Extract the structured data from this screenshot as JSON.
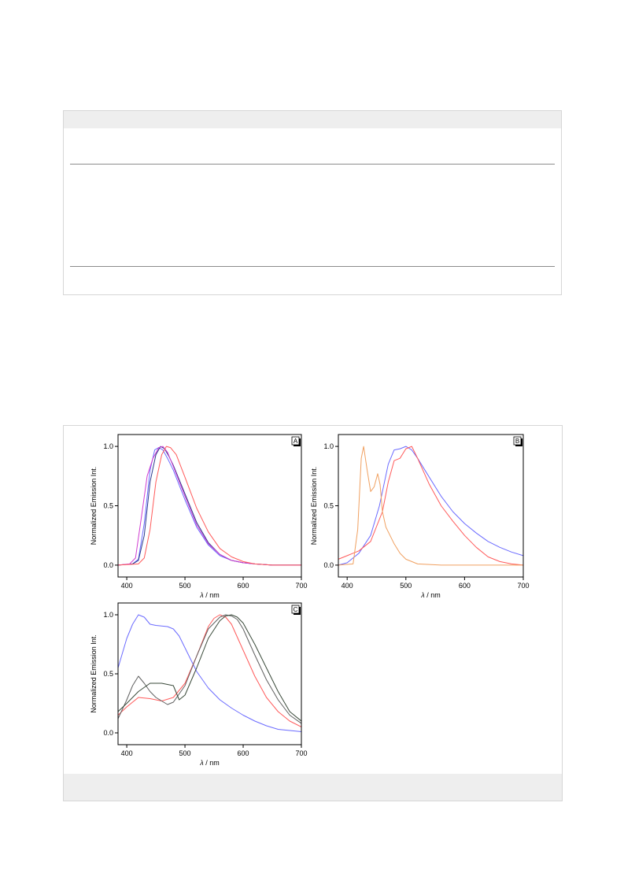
{
  "colors": {
    "blue": "#6b6bff",
    "red": "#ff5a5a",
    "magenta": "#d03cd0",
    "navy": "#2b3a8c",
    "orange": "#f0a060",
    "gray": "#606060",
    "darkgray": "#3a4a3a"
  },
  "chart_data": [
    {
      "panel": "A",
      "type": "line",
      "xlabel_var": "λ",
      "xlabel_unit": " / nm",
      "ylabel": "Normalized Emission Int.",
      "xlim": [
        385,
        700
      ],
      "ylim": [
        -0.1,
        1.1
      ],
      "xticks": [
        400,
        500,
        600,
        700
      ],
      "yticks": [
        0.0,
        0.5,
        1.0
      ],
      "series": [
        {
          "color": "blue",
          "x": [
            385,
            410,
            420,
            430,
            440,
            448,
            455,
            462,
            470,
            480,
            500,
            520,
            540,
            560,
            580,
            600,
            620,
            650,
            700
          ],
          "y": [
            0,
            0.01,
            0.05,
            0.35,
            0.8,
            0.97,
            0.99,
            0.97,
            0.9,
            0.8,
            0.55,
            0.32,
            0.17,
            0.08,
            0.04,
            0.02,
            0.01,
            0,
            0
          ]
        },
        {
          "color": "navy",
          "x": [
            385,
            410,
            420,
            430,
            440,
            450,
            458,
            465,
            472,
            480,
            500,
            520,
            540,
            560,
            580,
            600,
            620,
            650,
            700
          ],
          "y": [
            0,
            0.01,
            0.04,
            0.25,
            0.7,
            0.93,
            1.0,
            0.98,
            0.92,
            0.84,
            0.6,
            0.36,
            0.19,
            0.09,
            0.04,
            0.02,
            0.01,
            0,
            0
          ]
        },
        {
          "color": "magenta",
          "x": [
            385,
            405,
            415,
            425,
            435,
            445,
            455,
            462,
            470,
            480,
            500,
            520,
            540,
            560,
            580,
            600,
            620,
            650,
            700
          ],
          "y": [
            0,
            0.01,
            0.06,
            0.4,
            0.75,
            0.9,
            0.99,
            1.0,
            0.95,
            0.83,
            0.58,
            0.34,
            0.18,
            0.09,
            0.04,
            0.02,
            0.01,
            0,
            0
          ]
        },
        {
          "color": "red",
          "x": [
            385,
            420,
            430,
            440,
            450,
            460,
            468,
            475,
            485,
            500,
            520,
            540,
            560,
            580,
            600,
            620,
            650,
            700
          ],
          "y": [
            0,
            0.01,
            0.06,
            0.3,
            0.7,
            0.93,
            1.0,
            0.99,
            0.93,
            0.74,
            0.48,
            0.28,
            0.14,
            0.07,
            0.03,
            0.01,
            0,
            0
          ]
        }
      ]
    },
    {
      "panel": "B",
      "type": "line",
      "xlabel_var": "λ",
      "xlabel_unit": " / nm",
      "ylabel": "Normalized Emission Int.",
      "xlim": [
        385,
        700
      ],
      "ylim": [
        -0.1,
        1.1
      ],
      "xticks": [
        400,
        500,
        600,
        700
      ],
      "yticks": [
        0.0,
        0.5,
        1.0
      ],
      "series": [
        {
          "color": "blue",
          "x": [
            385,
            400,
            420,
            440,
            455,
            470,
            480,
            490,
            500,
            510,
            520,
            540,
            560,
            580,
            600,
            620,
            640,
            660,
            680,
            700
          ],
          "y": [
            0,
            0.02,
            0.1,
            0.25,
            0.5,
            0.85,
            0.97,
            0.98,
            1.0,
            0.97,
            0.9,
            0.74,
            0.58,
            0.45,
            0.35,
            0.27,
            0.2,
            0.15,
            0.11,
            0.08
          ]
        },
        {
          "color": "red",
          "x": [
            385,
            400,
            410,
            420,
            440,
            460,
            470,
            480,
            490,
            500,
            510,
            520,
            540,
            560,
            580,
            600,
            620,
            640,
            660,
            680,
            700
          ],
          "y": [
            0.05,
            0.08,
            0.1,
            0.12,
            0.2,
            0.45,
            0.7,
            0.88,
            0.9,
            0.98,
            1.0,
            0.9,
            0.68,
            0.5,
            0.37,
            0.25,
            0.15,
            0.07,
            0.03,
            0.01,
            0
          ]
        },
        {
          "color": "orange",
          "x": [
            385,
            410,
            418,
            424,
            428,
            434,
            440,
            446,
            452,
            456,
            460,
            466,
            472,
            480,
            490,
            500,
            520,
            560,
            600,
            700
          ],
          "y": [
            0,
            0.01,
            0.3,
            0.9,
            1.0,
            0.8,
            0.62,
            0.66,
            0.77,
            0.68,
            0.45,
            0.32,
            0.26,
            0.18,
            0.1,
            0.05,
            0.01,
            0,
            0,
            0
          ]
        }
      ]
    },
    {
      "panel": "C",
      "type": "line",
      "xlabel_var": "λ",
      "xlabel_unit": " / nm",
      "ylabel": "Normalized Emission Int.",
      "xlim": [
        385,
        700
      ],
      "ylim": [
        -0.1,
        1.1
      ],
      "xticks": [
        400,
        500,
        600,
        700
      ],
      "yticks": [
        0.0,
        0.5,
        1.0
      ],
      "series": [
        {
          "color": "blue",
          "x": [
            385,
            400,
            410,
            420,
            430,
            440,
            450,
            470,
            480,
            490,
            500,
            520,
            540,
            560,
            580,
            600,
            620,
            640,
            660,
            680,
            700
          ],
          "y": [
            0.55,
            0.8,
            0.92,
            1.0,
            0.98,
            0.92,
            0.91,
            0.9,
            0.88,
            0.82,
            0.72,
            0.52,
            0.38,
            0.28,
            0.21,
            0.15,
            0.1,
            0.06,
            0.03,
            0.02,
            0.01
          ]
        },
        {
          "color": "red",
          "x": [
            385,
            400,
            420,
            440,
            460,
            480,
            500,
            520,
            540,
            550,
            560,
            570,
            580,
            600,
            620,
            640,
            660,
            680,
            700
          ],
          "y": [
            0.15,
            0.22,
            0.3,
            0.29,
            0.27,
            0.3,
            0.42,
            0.65,
            0.9,
            0.97,
            1.0,
            0.98,
            0.92,
            0.7,
            0.48,
            0.3,
            0.18,
            0.1,
            0.05
          ]
        },
        {
          "color": "gray",
          "x": [
            385,
            400,
            410,
            420,
            430,
            440,
            450,
            460,
            470,
            480,
            500,
            520,
            540,
            560,
            570,
            580,
            590,
            600,
            620,
            640,
            660,
            680,
            700
          ],
          "y": [
            0.12,
            0.28,
            0.4,
            0.48,
            0.42,
            0.35,
            0.3,
            0.27,
            0.24,
            0.26,
            0.4,
            0.65,
            0.88,
            0.98,
            1.0,
            0.99,
            0.96,
            0.88,
            0.66,
            0.45,
            0.28,
            0.15,
            0.08
          ]
        },
        {
          "color": "darkgray",
          "x": [
            385,
            400,
            420,
            440,
            460,
            480,
            490,
            500,
            520,
            540,
            560,
            570,
            580,
            590,
            600,
            620,
            640,
            660,
            680,
            700
          ],
          "y": [
            0.18,
            0.25,
            0.35,
            0.42,
            0.42,
            0.4,
            0.28,
            0.32,
            0.55,
            0.8,
            0.95,
            0.99,
            1.0,
            0.98,
            0.93,
            0.75,
            0.55,
            0.35,
            0.18,
            0.1
          ]
        }
      ]
    }
  ]
}
